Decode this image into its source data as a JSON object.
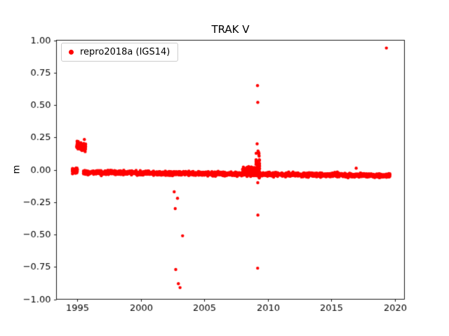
{
  "chart_data": {
    "type": "scatter",
    "title": "TRAK V",
    "xlabel": "",
    "ylabel": "m",
    "xlim": [
      1993.35,
      2020.75
    ],
    "ylim": [
      -1.0,
      1.0
    ],
    "grid": false,
    "xticks": [
      1995,
      2000,
      2005,
      2010,
      2015,
      2020
    ],
    "xtick_labels": [
      "1995",
      "2000",
      "2005",
      "2010",
      "2015",
      "2020"
    ],
    "yticks": [
      -1.0,
      -0.75,
      -0.5,
      -0.25,
      0.0,
      0.25,
      0.5,
      0.75,
      1.0
    ],
    "ytick_labels": [
      "−1.00",
      "−0.75",
      "−0.50",
      "−0.25",
      "0.00",
      "0.25",
      "0.50",
      "0.75",
      "1.00"
    ],
    "legend": {
      "position": "upper-left",
      "entries": [
        {
          "label": "repro2018a (IGS14)",
          "color": "#ff0000",
          "marker": "circle"
        }
      ]
    },
    "marker": {
      "shape": "circle",
      "color": "#ff0000",
      "radius_px": 2.2
    },
    "series": [
      {
        "name": "repro2018a (IGS14)",
        "color": "#ff0000",
        "clusters": [
          {
            "x_range": [
              1994.6,
              1995.0
            ],
            "y_mean": -0.008,
            "y_std": 0.01,
            "count": 70
          },
          {
            "x_range": [
              1994.95,
              1995.15
            ],
            "y_mean": 0.19,
            "y_std": 0.013,
            "count": 60
          },
          {
            "x_range": [
              1995.2,
              1995.65
            ],
            "y_mean": 0.175,
            "y_std": 0.015,
            "count": 90
          },
          {
            "x_range": [
              1995.45,
              2019.6
            ],
            "y_mean": -0.02,
            "y_mean_end": -0.045,
            "y_std": 0.007,
            "count": 2600
          },
          {
            "x_range": [
              2008.0,
              2009.0
            ],
            "y_mean": -0.01,
            "y_std": 0.015,
            "count": 120
          },
          {
            "x_range": [
              2009.05,
              2009.35
            ],
            "y_mean": 0.03,
            "y_std": 0.04,
            "count": 60
          }
        ],
        "outliers": [
          [
            2002.62,
            -0.17
          ],
          [
            2002.88,
            -0.22
          ],
          [
            2002.7,
            -0.3
          ],
          [
            2003.28,
            -0.51
          ],
          [
            2002.74,
            -0.77
          ],
          [
            2002.95,
            -0.88
          ],
          [
            2003.08,
            -0.91
          ],
          [
            2009.18,
            0.65
          ],
          [
            2009.2,
            0.52
          ],
          [
            2009.15,
            0.2
          ],
          [
            2009.22,
            0.145
          ],
          [
            2009.2,
            -0.1
          ],
          [
            2009.21,
            -0.35
          ],
          [
            2009.19,
            -0.76
          ],
          [
            2016.95,
            0.012
          ],
          [
            2019.33,
            0.94
          ]
        ]
      }
    ]
  }
}
